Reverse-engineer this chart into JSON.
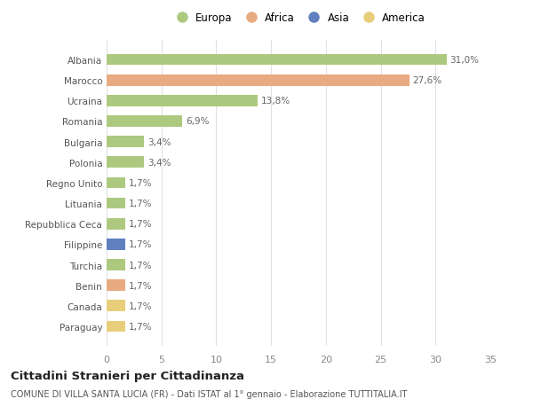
{
  "categories": [
    "Albania",
    "Marocco",
    "Ucraina",
    "Romania",
    "Bulgaria",
    "Polonia",
    "Regno Unito",
    "Lituania",
    "Repubblica Ceca",
    "Filippine",
    "Turchia",
    "Benin",
    "Canada",
    "Paraguay"
  ],
  "values": [
    31.0,
    27.6,
    13.8,
    6.9,
    3.4,
    3.4,
    1.7,
    1.7,
    1.7,
    1.7,
    1.7,
    1.7,
    1.7,
    1.7
  ],
  "labels": [
    "31,0%",
    "27,6%",
    "13,8%",
    "6,9%",
    "3,4%",
    "3,4%",
    "1,7%",
    "1,7%",
    "1,7%",
    "1,7%",
    "1,7%",
    "1,7%",
    "1,7%",
    "1,7%"
  ],
  "continents": [
    "Europa",
    "Africa",
    "Europa",
    "Europa",
    "Europa",
    "Europa",
    "Europa",
    "Europa",
    "Europa",
    "Asia",
    "Europa",
    "Africa",
    "America",
    "America"
  ],
  "colors": {
    "Europa": "#adc97f",
    "Africa": "#e8aa80",
    "Asia": "#6080c0",
    "America": "#e8ce7a"
  },
  "legend_order": [
    "Europa",
    "Africa",
    "Asia",
    "America"
  ],
  "title": "Cittadini Stranieri per Cittadinanza",
  "subtitle": "COMUNE DI VILLA SANTA LUCIA (FR) - Dati ISTAT al 1° gennaio - Elaborazione TUTTITALIA.IT",
  "xlim": [
    0,
    35
  ],
  "xticks": [
    0,
    5,
    10,
    15,
    20,
    25,
    30,
    35
  ],
  "background_color": "#ffffff",
  "grid_color": "#e0e0e0"
}
